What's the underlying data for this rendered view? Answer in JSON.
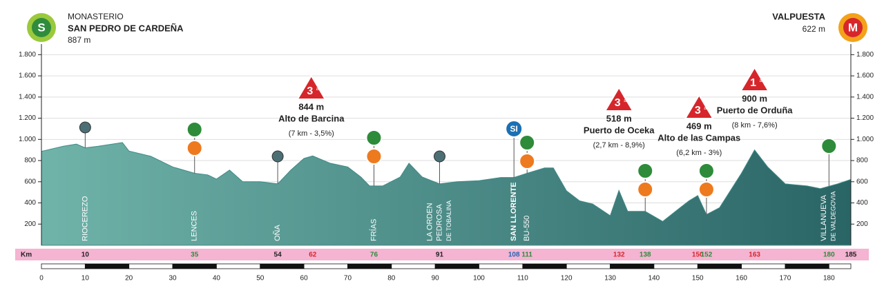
{
  "chart_data": {
    "type": "area",
    "start": {
      "badge": "S",
      "line1": "MONASTERIO",
      "line2": "SAN PEDRO DE CARDEÑA",
      "elevation": "887 m"
    },
    "finish": {
      "badge": "M",
      "line1": "VALPUESTA",
      "elevation": "622 m"
    },
    "profile": {
      "color": "#3f8a86",
      "km": [
        0,
        5,
        8,
        10,
        13,
        18.5,
        20,
        25,
        30,
        35,
        38,
        40,
        43,
        46,
        50,
        54,
        57,
        60,
        62,
        66,
        70,
        73,
        75,
        78,
        82,
        84,
        87,
        91,
        95,
        100,
        105,
        108,
        111,
        115,
        117,
        120,
        123,
        126,
        130,
        132,
        134,
        138,
        142,
        146,
        148,
        150,
        152,
        155,
        160,
        163,
        166,
        170,
        175,
        178,
        182,
        185
      ],
      "elevation": [
        887,
        935,
        955,
        920,
        935,
        970,
        890,
        840,
        740,
        680,
        665,
        625,
        710,
        600,
        600,
        580,
        710,
        820,
        844,
        775,
        740,
        645,
        560,
        560,
        645,
        775,
        645,
        580,
        600,
        610,
        640,
        640,
        680,
        730,
        730,
        515,
        420,
        390,
        280,
        518,
        320,
        320,
        225,
        355,
        420,
        469,
        290,
        355,
        680,
        900,
        740,
        580,
        560,
        535,
        580,
        622
      ]
    },
    "xlim": [
      0,
      185
    ],
    "ylim": [
      0,
      1900
    ],
    "xticks": [
      0,
      10,
      20,
      30,
      40,
      50,
      60,
      70,
      80,
      90,
      100,
      110,
      120,
      130,
      140,
      150,
      160,
      170,
      180
    ],
    "yticks": [
      200,
      400,
      600,
      800,
      {
        "value": 1000,
        "label": "1.000"
      },
      {
        "value": 1200,
        "label": "1.200"
      },
      {
        "value": 1400,
        "label": "1.400"
      },
      {
        "value": 1600,
        "label": "1.600"
      },
      {
        "value": 1800,
        "label": "1.800"
      }
    ],
    "grid": true,
    "km_label": "Km",
    "km_points": [
      {
        "km": 10,
        "color": "#222222",
        "places": [
          "RIOCEREZO"
        ]
      },
      {
        "km": 35,
        "color": "#2e8b3a",
        "places": [
          "LENCES"
        ]
      },
      {
        "km": 54,
        "color": "#222222",
        "places": [
          "OÑA"
        ]
      },
      {
        "km": 62,
        "color": "#d6262b"
      },
      {
        "km": 76,
        "color": "#2e8b3a",
        "places": [
          "FRÍAS"
        ]
      },
      {
        "km": 91,
        "color": "#222222",
        "places": [
          "LA ORDEN",
          "PEDROSA",
          "DE TOBALINA"
        ]
      },
      {
        "km": 108,
        "color": "#2563b0",
        "places": [
          "SAN LLORENTE"
        ]
      },
      {
        "km": 111,
        "color": "#2e8b3a",
        "places": [
          "BU-550"
        ]
      },
      {
        "km": 132,
        "color": "#d6262b"
      },
      {
        "km": 138,
        "color": "#2e8b3a"
      },
      {
        "km": 150,
        "color": "#d6262b"
      },
      {
        "km": 152,
        "color": "#2e8b3a"
      },
      {
        "km": 163,
        "color": "#d6262b"
      },
      {
        "km": 180,
        "color": "#2e8b3a",
        "places": [
          "VILLANUEVA",
          "DE VALDEGOVIA"
        ]
      },
      {
        "km": 185,
        "color": "#222222"
      }
    ],
    "sprint_label": "SI",
    "climbs": [
      {
        "cat": "3",
        "cat_suffix": "a",
        "altitude": "844 m",
        "name": "Alto de Barcina",
        "detail": "(7 km - 3,5%)"
      },
      {
        "cat": "3",
        "cat_suffix": "a",
        "altitude": "518 m",
        "name": "Puerto de Oceka",
        "detail": "(2,7 km - 8,9%)"
      },
      {
        "cat": "3",
        "cat_suffix": "a",
        "altitude": "469 m",
        "name": "Alto de las Campas",
        "detail": "(6,2 km - 3%)"
      },
      {
        "cat": "1",
        "cat_suffix": "a",
        "altitude": "900 m",
        "name": "Puerto de Orduña",
        "detail": "(8 km - 7,6%)"
      }
    ]
  }
}
